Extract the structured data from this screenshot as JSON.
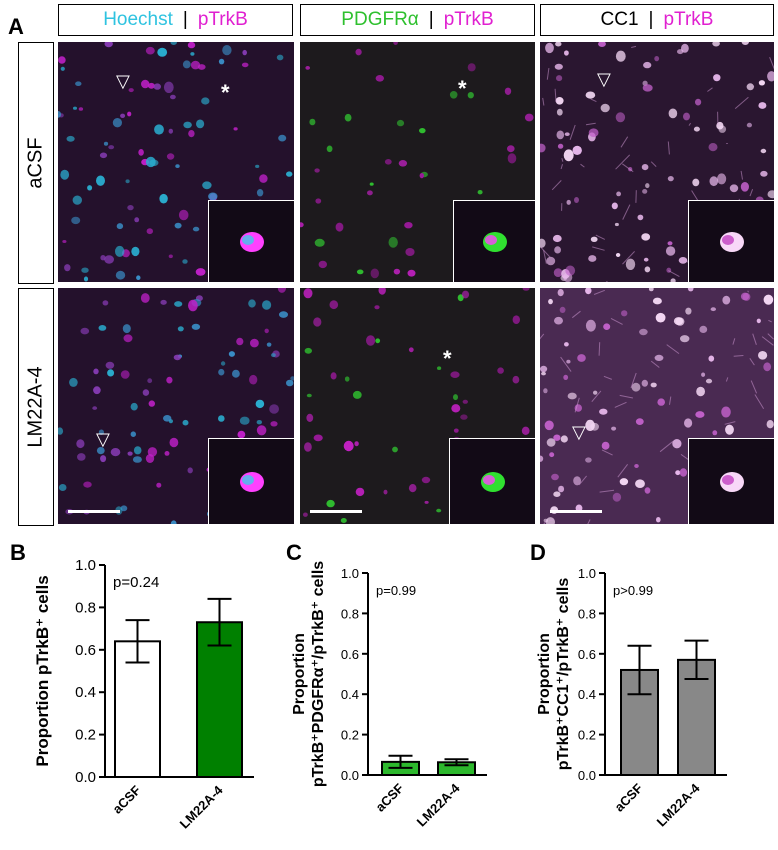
{
  "panel_labels": {
    "a": "A",
    "b": "B",
    "c": "C",
    "d": "D"
  },
  "headers": [
    {
      "left": "Hoechst",
      "sep": "|",
      "right": "pTrkB",
      "left_color": "#2fc3e0",
      "right_color": "#e020d0"
    },
    {
      "left": "PDGFRα",
      "sep": "|",
      "right": "pTrkB",
      "left_color": "#2ec02e",
      "right_color": "#e020d0"
    },
    {
      "left": "CC1",
      "sep": "|",
      "right": "pTrkB",
      "left_color": "#000000",
      "right_color": "#e020d0"
    }
  ],
  "rows": [
    {
      "label": "aCSF"
    },
    {
      "label": "LM22A-4"
    }
  ],
  "markers": {
    "arrowhead": "▽",
    "asterisk": "*"
  },
  "chart_data": [
    {
      "type": "bar",
      "panel": "B",
      "title": "",
      "ylabel": "Proportion pTrkB⁺ cells",
      "categories": [
        "aCSF",
        "LM22A-4"
      ],
      "values": [
        0.64,
        0.73
      ],
      "error": [
        0.1,
        0.11
      ],
      "colors": [
        "#ffffff",
        "#008000"
      ],
      "ylim": [
        0,
        1.0
      ],
      "yticks": [
        "0.0",
        "0.2",
        "0.4",
        "0.6",
        "0.8",
        "1.0"
      ],
      "annotation": "p=0.24"
    },
    {
      "type": "bar",
      "panel": "C",
      "title": "",
      "ylabel_line1": "Proportion",
      "ylabel_line2": "pTrkB⁺PDGFRα⁺/pTrkB⁺ cells",
      "categories": [
        "aCSF",
        "LM22A-4"
      ],
      "values": [
        0.065,
        0.063
      ],
      "error": [
        0.03,
        0.015
      ],
      "colors": [
        "#2db82d",
        "#2db82d"
      ],
      "ylim": [
        0,
        1.0
      ],
      "yticks": [
        "0.0",
        "0.2",
        "0.4",
        "0.6",
        "0.8",
        "1.0"
      ],
      "annotation": "p=0.99"
    },
    {
      "type": "bar",
      "panel": "D",
      "title": "",
      "ylabel_line1": "Proportion",
      "ylabel_line2": "pTrkB⁺CC1⁺/pTrkB⁺ cells",
      "categories": [
        "aCSF",
        "LM22A-4"
      ],
      "values": [
        0.52,
        0.57
      ],
      "error": [
        0.12,
        0.095
      ],
      "colors": [
        "#888888",
        "#888888"
      ],
      "ylim": [
        0,
        1.0
      ],
      "yticks": [
        "0.0",
        "0.2",
        "0.4",
        "0.6",
        "0.8",
        "1.0"
      ],
      "annotation": "p>0.99"
    }
  ]
}
